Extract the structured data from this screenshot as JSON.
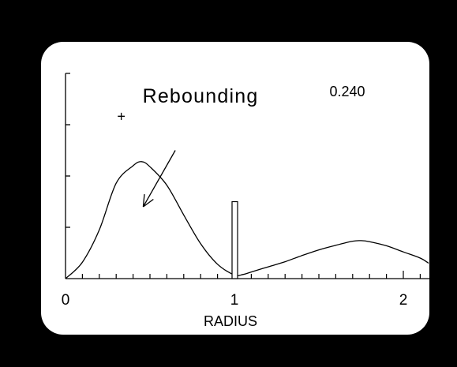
{
  "colors": {
    "background": "#000000",
    "panel": "#ffffff",
    "ink": "#000000"
  },
  "chart_data": {
    "type": "line",
    "title": "Rebounding",
    "value_readout": "0.240",
    "xlabel": "RADIUS",
    "ylabel": "",
    "x_ticks": [
      "0",
      "1",
      "2"
    ],
    "xlim": [
      0,
      2.15
    ],
    "ylim": [
      0,
      4
    ],
    "y_tick_count": 4,
    "grid": false,
    "series": [
      {
        "x": [
          0,
          0.1,
          0.2,
          0.3,
          0.4,
          0.45,
          0.5,
          0.6,
          0.7,
          0.8,
          0.9,
          1.0,
          1.05,
          1.1,
          1.2,
          1.3,
          1.4,
          1.5,
          1.6,
          1.7,
          1.75,
          1.8,
          1.9,
          2.0,
          2.1,
          2.15
        ],
        "y": [
          0,
          0.32,
          0.95,
          1.86,
          2.2,
          2.28,
          2.18,
          1.82,
          1.24,
          0.68,
          0.28,
          0.07,
          0.08,
          0.13,
          0.23,
          0.33,
          0.45,
          0.56,
          0.65,
          0.73,
          0.74,
          0.72,
          0.64,
          0.52,
          0.4,
          0.3
        ]
      }
    ],
    "annotations": [
      {
        "type": "arrow",
        "label": "",
        "from": [
          0.65,
          2.5
        ],
        "to": [
          0.46,
          1.4
        ]
      },
      {
        "type": "cross-marker",
        "label": "+",
        "x": 0.33,
        "y": 3.16
      },
      {
        "type": "bar-marker",
        "label": "",
        "x": 1.0,
        "value": 1.5
      }
    ]
  }
}
